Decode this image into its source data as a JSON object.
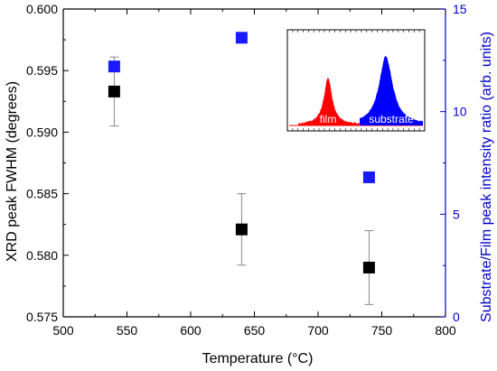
{
  "chart_data": {
    "type": "scatter",
    "xlabel": "Temperature (°C)",
    "ylabel_left": "XRD peak FWHM (degrees)",
    "ylabel_right": "Substrate/Film peak intensity ratio (arb. units)",
    "xlim": [
      500,
      800
    ],
    "ylim_left": [
      0.575,
      0.6
    ],
    "ylim_right": [
      0,
      15
    ],
    "x_ticks": [
      "500",
      "550",
      "600",
      "650",
      "700",
      "750",
      "800"
    ],
    "y_ticks_left": [
      "0.575",
      "0.580",
      "0.585",
      "0.590",
      "0.595",
      "0.600"
    ],
    "y_ticks_right": [
      "0",
      "5",
      "10",
      "15"
    ],
    "grid": false,
    "series": [
      {
        "axis": "left",
        "color": "#000000",
        "marker": "square",
        "points": [
          {
            "x": 540,
            "y": 0.5933,
            "err": 0.0028
          },
          {
            "x": 640,
            "y": 0.5821,
            "err": 0.0029
          },
          {
            "x": 740,
            "y": 0.579,
            "err": 0.003
          }
        ]
      },
      {
        "axis": "right",
        "color": "#1a1aff",
        "marker": "square",
        "points": [
          {
            "x": 540,
            "y": 12.2
          },
          {
            "x": 640,
            "y": 13.6
          },
          {
            "x": 740,
            "y": 6.8
          }
        ]
      }
    ],
    "inset": {
      "type": "area",
      "labels": {
        "film": "film",
        "substrate": "substrate"
      },
      "film_color": "#ff0000",
      "substrate_color": "#0000ff"
    },
    "colors": {
      "left_axis": "#000000",
      "right_axis": "#0000cc"
    }
  }
}
